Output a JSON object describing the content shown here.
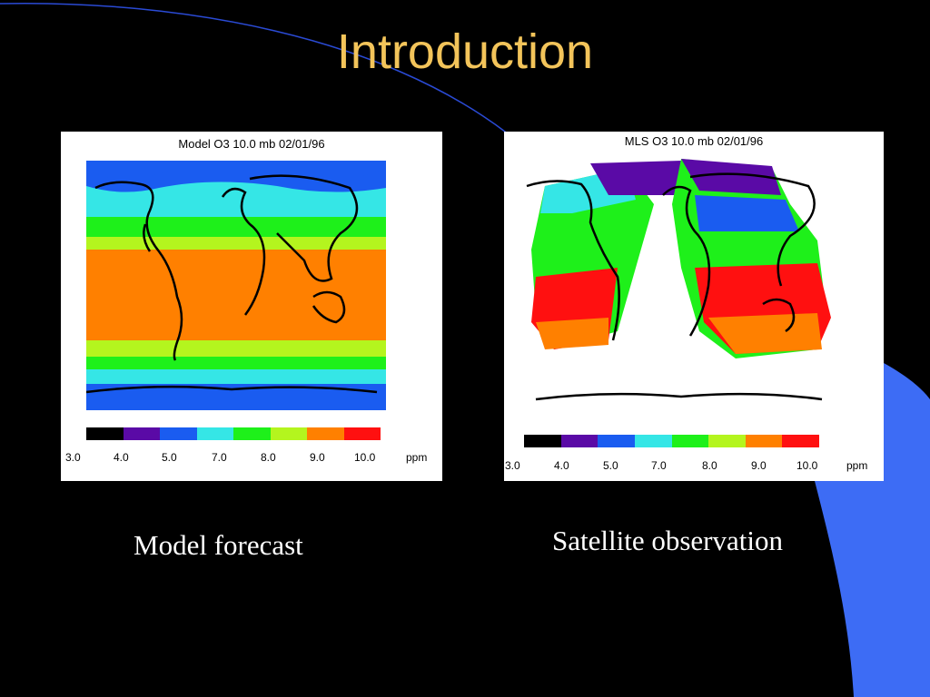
{
  "slide": {
    "title": "Introduction"
  },
  "colors": {
    "background": "#000000",
    "title": "#f3c45a",
    "accent_blue": "#3d6cf5",
    "accent_line": "#2a4ad4"
  },
  "panels": [
    {
      "id": "model",
      "map_title": "Model O3  10.0 mb 02/01/96",
      "caption": "Model forecast",
      "scale_ticks": [
        "3.0",
        "4.0",
        "5.0",
        "7.0",
        "8.0",
        "9.0",
        "10.0",
        "ppm"
      ]
    },
    {
      "id": "mls",
      "map_title": "MLS O3  10.0 mb 02/01/96",
      "caption": "Satellite observation",
      "scale_ticks": [
        "3.0",
        "4.0",
        "5.0",
        "7.0",
        "8.0",
        "9.0",
        "10.0",
        "ppm"
      ]
    }
  ],
  "color_scale": [
    "#000000",
    "#5a0aa6",
    "#1a5cf0",
    "#35e6e6",
    "#1ef01a",
    "#b4f51e",
    "#ff8000",
    "#ff1010"
  ]
}
